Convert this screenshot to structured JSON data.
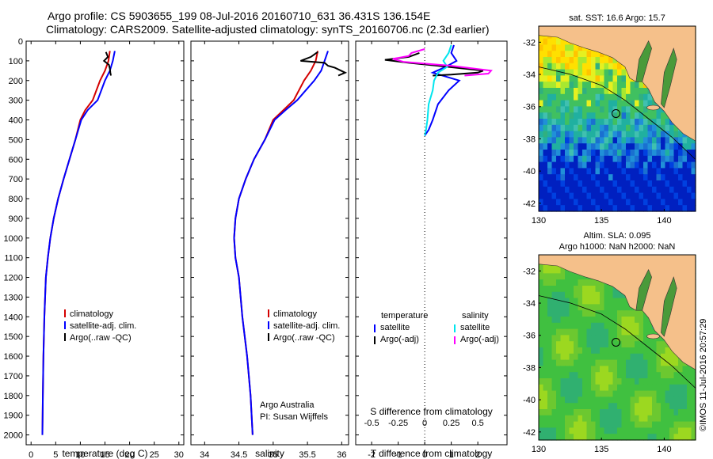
{
  "header": {
    "line1": "Argo profile: CS 5903655_199 08-Jul-2016 20160710_631 36.431S 136.154E",
    "line2": "Climatology: CARS2009. Satellite-adjusted climatology: synTS_20160706.nc (2.3d earlier)"
  },
  "watermark": "©IMOS 11-Jul-2016 20:57:29",
  "colors": {
    "climatology": "#d40000",
    "satellite": "#0000ff",
    "argo": "#000000",
    "sal_satellite": "#00e5ee",
    "sal_argo": "#ff00ff",
    "land": "#f5c08a"
  },
  "chart_data": [
    {
      "type": "line",
      "id": "temperature",
      "xlabel": "temperature (deg C)",
      "xlim": [
        -1,
        31
      ],
      "xticks": [
        "0",
        "5",
        "10",
        "15",
        "20",
        "25",
        "30"
      ],
      "ylim": [
        0,
        2050
      ],
      "yticks": [
        "0",
        "100",
        "200",
        "300",
        "400",
        "500",
        "600",
        "700",
        "800",
        "900",
        "1000",
        "1100",
        "1200",
        "1300",
        "1400",
        "1500",
        "1600",
        "1700",
        "1800",
        "1900",
        "2000"
      ],
      "y_reversed": true,
      "legend": [
        "climatology",
        "satellite-adj. clim.",
        "Argo(..raw -QC)"
      ],
      "series": [
        {
          "name": "climatology",
          "color": "#d40000",
          "x": [
            16.0,
            15.7,
            15.0,
            14.0,
            12.5,
            11.0,
            10.0,
            9.0,
            7.8,
            6.6,
            5.5,
            4.6,
            3.9,
            3.4,
            3.0,
            2.7,
            2.5,
            2.4,
            2.3
          ],
          "y": [
            50,
            100,
            150,
            200,
            300,
            350,
            400,
            500,
            600,
            700,
            800,
            900,
            1000,
            1100,
            1200,
            1400,
            1600,
            1800,
            2000
          ]
        },
        {
          "name": "satellite-adj. clim.",
          "color": "#0000ff",
          "x": [
            17.0,
            16.6,
            16.0,
            15.0,
            13.5,
            11.5,
            10.2,
            9.0,
            7.8,
            6.6,
            5.5,
            4.6,
            3.9,
            3.4,
            3.0,
            2.7,
            2.5,
            2.4,
            2.3
          ],
          "y": [
            50,
            100,
            150,
            200,
            300,
            350,
            400,
            500,
            600,
            700,
            800,
            900,
            1000,
            1100,
            1200,
            1400,
            1600,
            1800,
            2000
          ]
        },
        {
          "name": "Argo(..raw -QC)",
          "color": "#000000",
          "x": [
            15.2,
            15.6,
            14.8,
            15.8,
            16.0,
            16.1,
            16.2
          ],
          "y": [
            55,
            80,
            100,
            120,
            140,
            160,
            175
          ]
        }
      ]
    },
    {
      "type": "line",
      "id": "salinity",
      "xlabel": "salinity",
      "xlim": [
        33.8,
        36.1
      ],
      "xticks": [
        "34",
        "34.5",
        "35",
        "35.5",
        "36"
      ],
      "ylim": [
        0,
        2050
      ],
      "y_reversed": true,
      "legend": [
        "climatology",
        "satellite-adj. clim.",
        "Argo(..raw -QC)"
      ],
      "annotation": [
        "Argo Australia",
        "PI: Susan Wijffels"
      ],
      "series": [
        {
          "name": "climatology",
          "color": "#d40000",
          "x": [
            35.65,
            35.62,
            35.55,
            35.45,
            35.3,
            35.15,
            35.0,
            34.88,
            34.72,
            34.6,
            34.5,
            34.45,
            34.43,
            34.45,
            34.5,
            34.55,
            34.62,
            34.67,
            34.7
          ],
          "y": [
            50,
            100,
            150,
            200,
            300,
            350,
            400,
            500,
            600,
            700,
            800,
            900,
            1000,
            1100,
            1200,
            1400,
            1600,
            1800,
            2000
          ]
        },
        {
          "name": "satellite-adj. clim.",
          "color": "#0000ff",
          "x": [
            35.8,
            35.75,
            35.7,
            35.6,
            35.35,
            35.18,
            35.02,
            34.88,
            34.72,
            34.6,
            34.5,
            34.45,
            34.43,
            34.45,
            34.5,
            34.55,
            34.62,
            34.67,
            34.7
          ],
          "y": [
            50,
            100,
            150,
            200,
            300,
            350,
            400,
            500,
            600,
            700,
            800,
            900,
            1000,
            1100,
            1200,
            1400,
            1600,
            1800,
            2000
          ]
        },
        {
          "name": "Argo(..raw -QC)",
          "color": "#000000",
          "x": [
            35.65,
            35.55,
            35.4,
            35.75,
            35.8,
            35.9,
            36.05,
            35.95
          ],
          "y": [
            55,
            80,
            100,
            110,
            125,
            135,
            160,
            175
          ]
        }
      ]
    },
    {
      "type": "line",
      "id": "difference",
      "title": "",
      "xlabel": "T difference from climatology",
      "xlabel_top": "S difference from climatology",
      "xlim": [
        -2.6,
        3.1
      ],
      "xticks": [
        "-2",
        "-1",
        "0",
        "1",
        "2"
      ],
      "xticks_S": [
        "-0.5",
        "-0.25",
        "0",
        "0.25",
        "0.5"
      ],
      "ylim": [
        0,
        2050
      ],
      "y_reversed": true,
      "legend_left": [
        "temperature",
        "satellite",
        "Argo(-adj)"
      ],
      "legend_right": [
        "salinity",
        "satellite",
        "Argo(-adj)"
      ],
      "series": [
        {
          "name": "satellite",
          "color": "#0000ff",
          "x": [
            1.1,
            1.0,
            1.2,
            0.8,
            0.3,
            1.3,
            0.9,
            0.5,
            0.3,
            0.15,
            0.0
          ],
          "y": [
            20,
            60,
            100,
            130,
            160,
            200,
            250,
            320,
            400,
            450,
            480
          ]
        },
        {
          "name": "Argo(-adj)",
          "color": "#000000",
          "x": [
            -0.2,
            -0.6,
            -1.5,
            -0.6,
            0.5,
            2.2,
            2.0,
            1.0,
            0.3
          ],
          "y": [
            60,
            80,
            95,
            110,
            125,
            150,
            160,
            170,
            175
          ]
        },
        {
          "name": "satellite",
          "color": "#00e5ee",
          "x": [
            1.0,
            0.9,
            0.7,
            0.85,
            0.5,
            0.35,
            0.3,
            0.15,
            0.1,
            0.05,
            0.0
          ],
          "y": [
            20,
            60,
            100,
            130,
            160,
            200,
            250,
            320,
            400,
            450,
            480
          ]
        },
        {
          "name": "Argo(-adj)",
          "color": "#ff00ff",
          "x": [
            0.0,
            -0.5,
            -0.6,
            -1.2,
            -0.8,
            1.0,
            2.5,
            2.4,
            1.5
          ],
          "y": [
            40,
            60,
            75,
            90,
            105,
            125,
            150,
            165,
            175
          ]
        }
      ]
    },
    {
      "type": "heatmap",
      "id": "sst-map",
      "title": "sat. SST: 16.6  Argo: 15.7",
      "xlim": [
        130,
        142.5
      ],
      "ylim": [
        -42.5,
        -31
      ],
      "xticks": [
        "130",
        "135",
        "140"
      ],
      "yticks": [
        "-32",
        "-34",
        "-36",
        "-38",
        "-40",
        "-42"
      ]
    },
    {
      "type": "heatmap",
      "id": "sla-map",
      "title": "Altim. SLA: 0.095",
      "subtitle": "Argo h1000: NaN h2000: NaN",
      "xlim": [
        130,
        142.5
      ],
      "ylim": [
        -42.5,
        -31
      ],
      "xticks": [
        "130",
        "135",
        "140"
      ],
      "yticks": [
        "-32",
        "-34",
        "-36",
        "-38",
        "-40",
        "-42"
      ]
    }
  ]
}
